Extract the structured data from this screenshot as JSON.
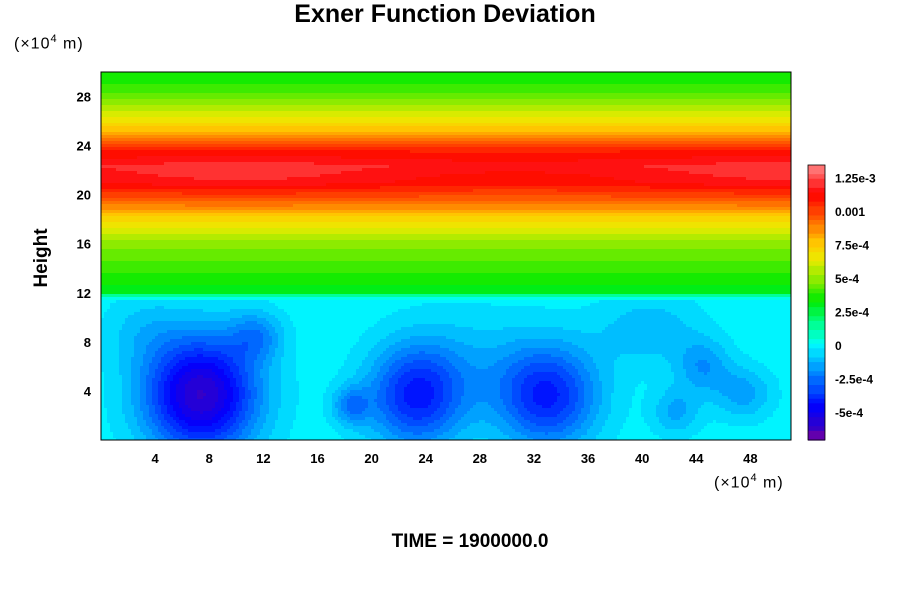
{
  "chart_data": {
    "type": "heatmap",
    "title": "Exner Function Deviation",
    "ylabel": "Height",
    "x_unit": {
      "prefix": "(×10",
      "exp": "4",
      "suffix": " m)"
    },
    "y_unit": {
      "prefix": "(×10",
      "exp": "4",
      "suffix": " m)"
    },
    "footer": "TIME = 1900000.0",
    "xlim": [
      0,
      51
    ],
    "ylim": [
      0,
      30
    ],
    "x_ticks": [
      4,
      8,
      12,
      16,
      20,
      24,
      28,
      32,
      36,
      40,
      44,
      48
    ],
    "y_ticks": [
      4,
      8,
      12,
      16,
      20,
      24,
      28
    ],
    "colorbar": {
      "range": [
        -0.0007,
        0.00135
      ],
      "tick_values": [
        0.00125,
        0.001,
        0.00075,
        0.0005,
        0.00025,
        0,
        -0.00025,
        -0.0005
      ],
      "tick_labels": [
        "1.25e-3",
        "0.001",
        "7.5e-4",
        "5e-4",
        "2.5e-4",
        "0",
        "-2.5e-4",
        "-5e-4"
      ]
    },
    "profile": {
      "heights": [
        0,
        11.5,
        12,
        14,
        16,
        18,
        19.5,
        21,
        22.3,
        23.5,
        25,
        27,
        29,
        30
      ],
      "values": [
        0,
        0,
        0.00028,
        0.0004,
        0.0005,
        0.0007,
        0.00095,
        0.00115,
        0.0012,
        0.0011,
        0.0008,
        0.00055,
        0.00037,
        0.00033
      ]
    },
    "anomalies": [
      {
        "x": 7.4,
        "y": 3.7,
        "depth": -0.0006,
        "rx": 4.2,
        "ry": 4.8
      },
      {
        "x": 23.3,
        "y": 3.6,
        "depth": -0.0004,
        "rx": 3.6,
        "ry": 4.2
      },
      {
        "x": 33.0,
        "y": 3.6,
        "depth": -0.0004,
        "rx": 3.8,
        "ry": 4.2
      },
      {
        "x": 11.5,
        "y": 8.5,
        "depth": -0.00018,
        "rx": 2.0,
        "ry": 2.0
      },
      {
        "x": 18.5,
        "y": 2.8,
        "depth": -0.0002,
        "rx": 1.4,
        "ry": 1.6
      },
      {
        "x": 44.5,
        "y": 6.0,
        "depth": -0.00017,
        "rx": 2.0,
        "ry": 2.2
      },
      {
        "x": 47.5,
        "y": 3.8,
        "depth": -0.00016,
        "rx": 2.2,
        "ry": 2.2
      },
      {
        "x": 42.5,
        "y": 2.3,
        "depth": -0.00015,
        "rx": 1.8,
        "ry": 2.0
      },
      {
        "x": 40.5,
        "y": 9.0,
        "depth": -0.00012,
        "rx": 4.0,
        "ry": 3.0
      },
      {
        "x": 27.5,
        "y": 6.5,
        "depth": -8e-05,
        "rx": 5.0,
        "ry": 4.5
      },
      {
        "x": 3.0,
        "y": 9.0,
        "depth": -8e-05,
        "rx": 3.0,
        "ry": 3.0
      }
    ]
  }
}
